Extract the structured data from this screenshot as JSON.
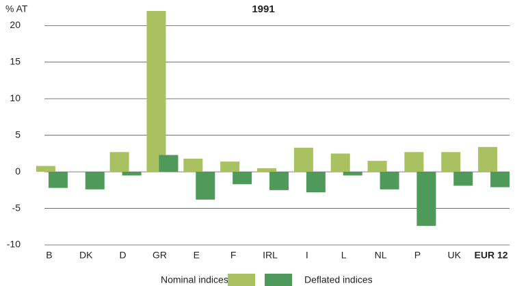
{
  "chart_data": {
    "type": "bar",
    "title": "1991",
    "y_label": "% AT",
    "categories": [
      "B",
      "DK",
      "D",
      "GR",
      "E",
      "F",
      "IRL",
      "I",
      "L",
      "NL",
      "P",
      "UK",
      "EUR 12"
    ],
    "series": [
      {
        "name": "Nominal indices",
        "color": "#a9c160",
        "values": [
          0.8,
          0,
          2.7,
          22,
          1.8,
          1.4,
          0.5,
          3.3,
          2.5,
          1.5,
          2.7,
          2.7,
          3.4
        ]
      },
      {
        "name": "Deflated indices",
        "color": "#4f9a5b",
        "values": [
          -2.2,
          -2.4,
          -0.5,
          2.3,
          -3.8,
          -1.7,
          -2.5,
          -2.8,
          -0.5,
          -2.4,
          -7.4,
          -1.9,
          -2.1
        ]
      }
    ],
    "ylim": [
      -10,
      22
    ],
    "yticks": [
      -10,
      -5,
      0,
      5,
      10,
      15,
      20
    ],
    "grid": true
  }
}
